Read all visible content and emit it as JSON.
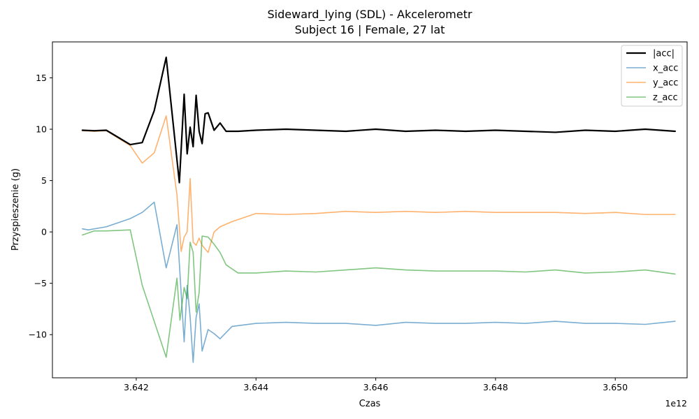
{
  "chart_data": {
    "type": "line",
    "title": "Sideward_lying (SDL) - Akcelerometr",
    "subtitle": "Subject 16 | Female, 27 lat",
    "xlabel": "Czas",
    "ylabel": "Przyspieszenie (g)",
    "x_offset_label": "1e12",
    "xlim": [
      3.6406,
      3.6512
    ],
    "ylim": [
      -14.2,
      18.5
    ],
    "x_ticks": [
      3.642,
      3.644,
      3.646,
      3.648,
      3.65
    ],
    "x_tick_labels": [
      "3.642",
      "3.644",
      "3.646",
      "3.648",
      "3.650"
    ],
    "y_ticks": [
      -10,
      -5,
      0,
      5,
      10,
      15
    ],
    "y_tick_labels": [
      "−10",
      "−5",
      "0",
      "5",
      "10",
      "15"
    ],
    "grid": false,
    "legend_position": "top-right",
    "series": [
      {
        "name": "|acc|",
        "color": "#000000",
        "x": [
          3.6411,
          3.6413,
          3.6415,
          3.6419,
          3.6421,
          3.6423,
          3.6425,
          3.64272,
          3.6428,
          3.64285,
          3.6429,
          3.64295,
          3.643,
          3.64305,
          3.6431,
          3.64315,
          3.6432,
          3.6433,
          3.6434,
          3.6435,
          3.6437,
          3.644,
          3.6445,
          3.645,
          3.6455,
          3.646,
          3.6465,
          3.647,
          3.6475,
          3.648,
          3.6485,
          3.649,
          3.6495,
          3.65,
          3.6505,
          3.651
        ],
        "y": [
          9.9,
          9.85,
          9.9,
          8.5,
          8.7,
          11.8,
          17.0,
          4.8,
          13.4,
          7.6,
          10.2,
          8.3,
          13.3,
          9.8,
          8.6,
          11.5,
          11.6,
          9.9,
          10.6,
          9.8,
          9.8,
          9.9,
          10.0,
          9.9,
          9.8,
          10.0,
          9.8,
          9.9,
          9.8,
          9.9,
          9.8,
          9.7,
          9.9,
          9.8,
          10.0,
          9.8
        ]
      },
      {
        "name": "x_acc",
        "color": "#1f77b4",
        "x": [
          3.6411,
          3.6412,
          3.6415,
          3.6419,
          3.6421,
          3.6423,
          3.6425,
          3.64268,
          3.6428,
          3.64285,
          3.6429,
          3.64295,
          3.643,
          3.64305,
          3.6431,
          3.6432,
          3.6433,
          3.6434,
          3.6436,
          3.644,
          3.6445,
          3.645,
          3.6455,
          3.646,
          3.6465,
          3.647,
          3.6475,
          3.648,
          3.6485,
          3.649,
          3.6495,
          3.65,
          3.6505,
          3.651
        ],
        "y": [
          0.3,
          0.2,
          0.5,
          1.3,
          1.9,
          2.9,
          -3.5,
          0.7,
          -10.7,
          -5.2,
          -8.3,
          -12.7,
          -8.3,
          -7.0,
          -11.6,
          -9.5,
          -9.9,
          -10.4,
          -9.2,
          -8.9,
          -8.8,
          -8.9,
          -8.9,
          -9.1,
          -8.8,
          -8.9,
          -8.9,
          -8.8,
          -8.9,
          -8.7,
          -8.9,
          -8.9,
          -9.0,
          -8.7
        ]
      },
      {
        "name": "y_acc",
        "color": "#ff7f0e",
        "x": [
          3.6411,
          3.6413,
          3.6415,
          3.6419,
          3.6421,
          3.6423,
          3.6425,
          3.64268,
          3.64275,
          3.6428,
          3.64285,
          3.6429,
          3.64295,
          3.643,
          3.64305,
          3.6431,
          3.6432,
          3.6433,
          3.6434,
          3.6436,
          3.644,
          3.6445,
          3.645,
          3.6455,
          3.646,
          3.6465,
          3.647,
          3.6475,
          3.648,
          3.6485,
          3.649,
          3.6495,
          3.65,
          3.6505,
          3.651
        ],
        "y": [
          9.85,
          9.8,
          9.85,
          8.4,
          6.7,
          7.7,
          11.3,
          3.6,
          -1.9,
          -0.5,
          0.0,
          5.2,
          -1.0,
          -1.3,
          -0.6,
          -1.3,
          -2.0,
          0.0,
          0.5,
          1.0,
          1.8,
          1.7,
          1.8,
          2.0,
          1.9,
          2.0,
          1.9,
          2.0,
          1.9,
          1.9,
          1.9,
          1.8,
          1.9,
          1.7,
          1.7
        ]
      },
      {
        "name": "z_acc",
        "color": "#2ca02c",
        "x": [
          3.6411,
          3.6413,
          3.6415,
          3.6419,
          3.6421,
          3.6423,
          3.6425,
          3.64268,
          3.64273,
          3.6428,
          3.64285,
          3.6429,
          3.64295,
          3.643,
          3.64305,
          3.6431,
          3.6432,
          3.6433,
          3.6434,
          3.6435,
          3.6437,
          3.644,
          3.6445,
          3.645,
          3.6455,
          3.646,
          3.6465,
          3.647,
          3.6475,
          3.648,
          3.6485,
          3.649,
          3.6495,
          3.65,
          3.6505,
          3.651
        ],
        "y": [
          -0.3,
          0.1,
          0.1,
          0.2,
          -5.2,
          -8.7,
          -12.2,
          -4.5,
          -8.6,
          -5.4,
          -6.5,
          -1.0,
          -2.0,
          -7.8,
          -5.9,
          -0.4,
          -0.5,
          -1.2,
          -2.0,
          -3.2,
          -4.0,
          -4.0,
          -3.8,
          -3.9,
          -3.7,
          -3.5,
          -3.7,
          -3.8,
          -3.8,
          -3.8,
          -3.9,
          -3.7,
          -4.0,
          -3.9,
          -3.7,
          -4.1
        ]
      }
    ]
  }
}
